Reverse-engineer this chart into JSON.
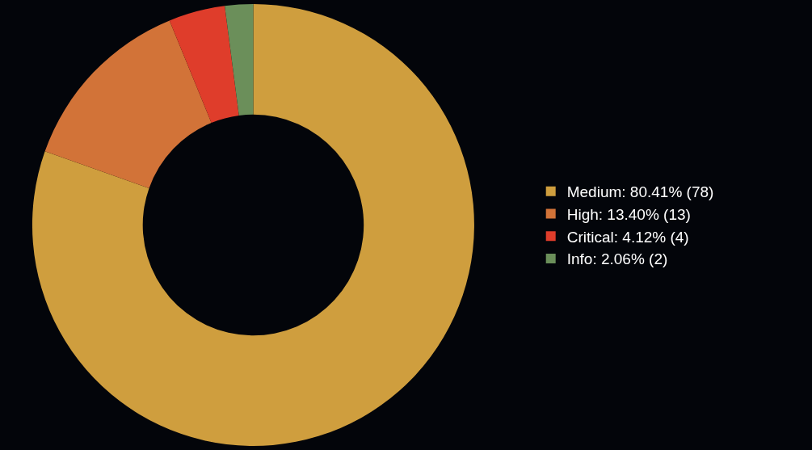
{
  "chart_data": {
    "type": "donut",
    "categories": [
      "Medium: 80.41% (78)",
      "High: 13.40% (13)",
      "Critical: 4.12% (4)",
      "Info: 2.06% (2)"
    ],
    "values": [
      78,
      13,
      4,
      2
    ],
    "colors": [
      "#cf9e3e",
      "#d27338",
      "#df3d2b",
      "#6b8f5a"
    ],
    "legend": "right"
  }
}
